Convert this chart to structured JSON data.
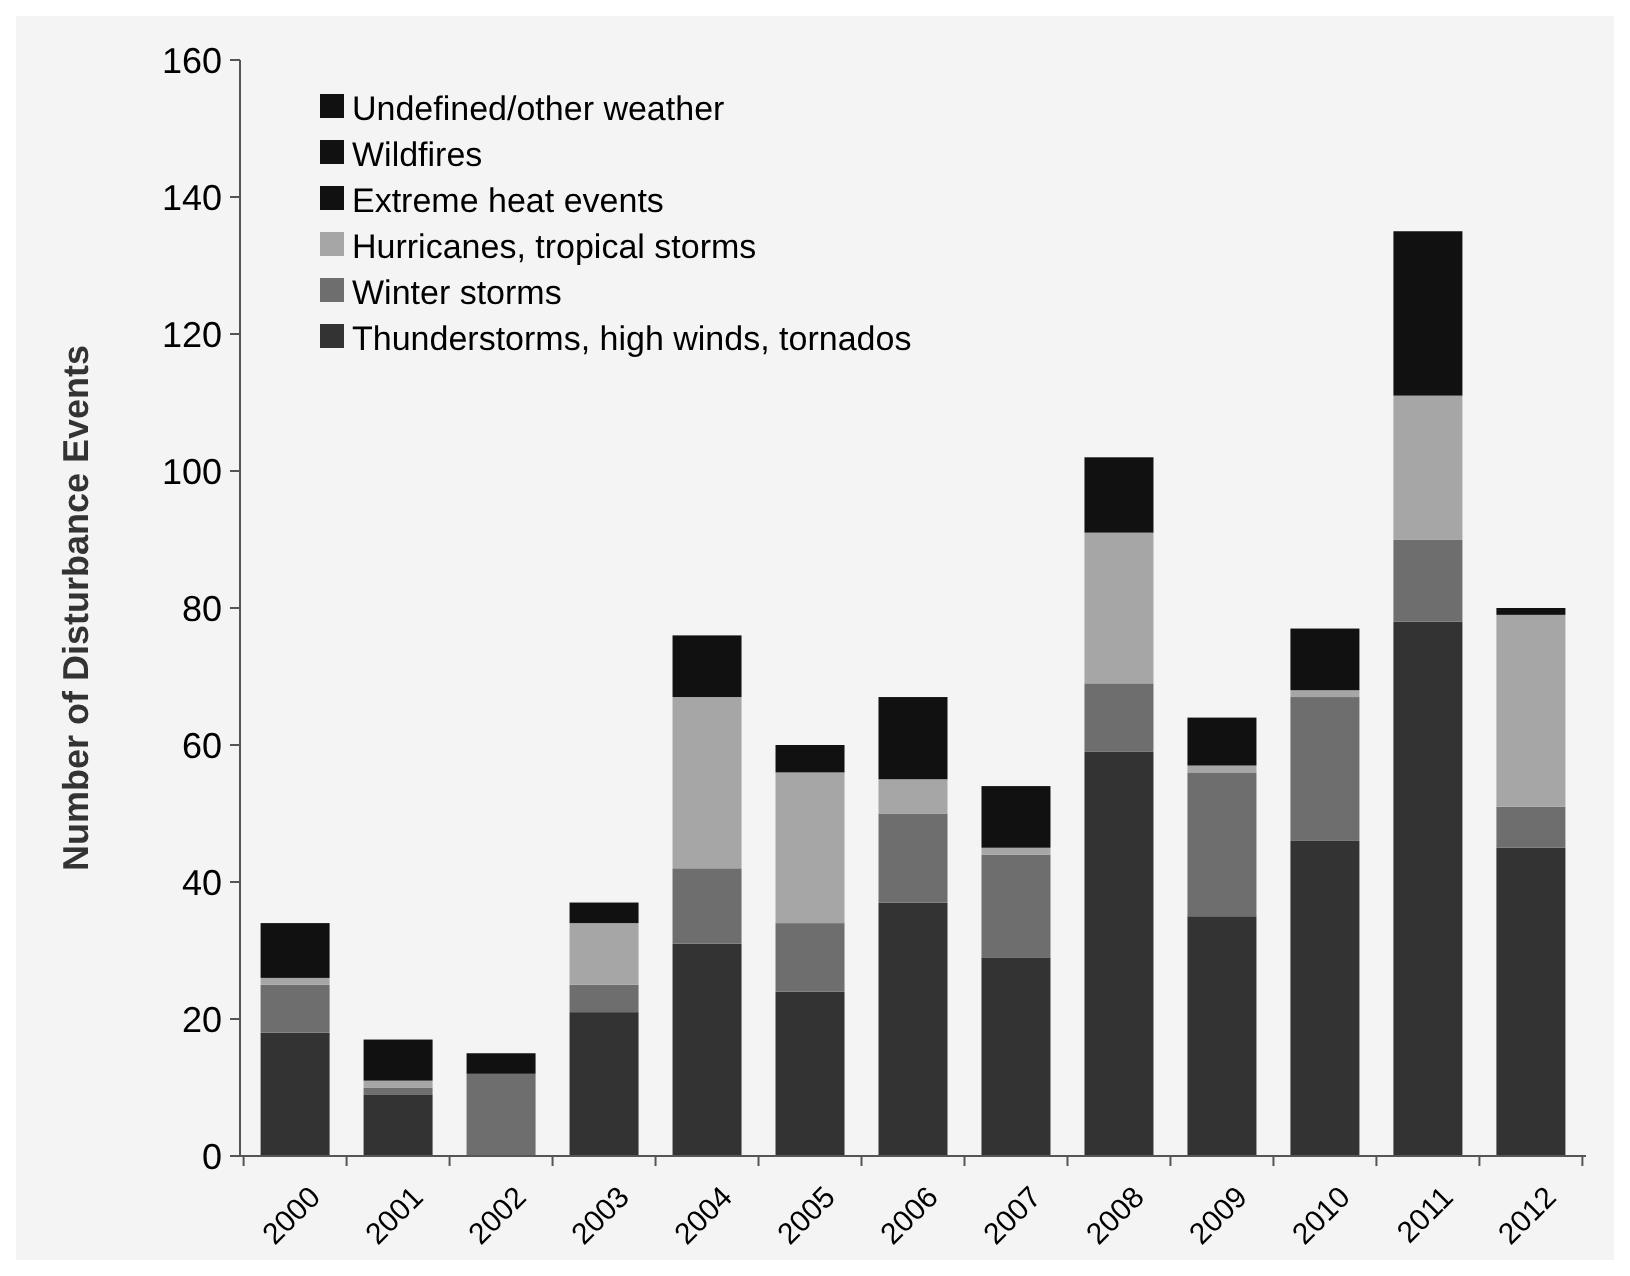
{
  "chart_data": {
    "type": "bar",
    "stacked": true,
    "ylabel": "Number of Disturbance Events",
    "categories": [
      "2000",
      "2001",
      "2002",
      "2003",
      "2004",
      "2005",
      "2006",
      "2007",
      "2008",
      "2009",
      "2010",
      "2011",
      "2012"
    ],
    "series": [
      {
        "name": "Thunderstorms, high winds, tornados",
        "color": "#333333",
        "values": [
          18,
          9,
          0,
          21,
          31,
          24,
          37,
          29,
          59,
          35,
          46,
          78,
          45
        ]
      },
      {
        "name": "Winter storms",
        "color": "#6e6e6e",
        "values": [
          7,
          1,
          12,
          4,
          11,
          10,
          13,
          15,
          10,
          21,
          21,
          12,
          6
        ]
      },
      {
        "name": "Hurricanes, tropical storms",
        "color": "#a6a6a6",
        "values": [
          1,
          1,
          0,
          9,
          25,
          22,
          5,
          1,
          22,
          1,
          1,
          21,
          28
        ]
      },
      {
        "name": "Extreme heat events",
        "color": "#111111",
        "values": [
          8,
          6,
          3,
          3,
          9,
          4,
          12,
          9,
          11,
          7,
          9,
          24,
          1
        ]
      },
      {
        "name": "Wildfires",
        "color": "#111111",
        "values": [
          0,
          0,
          0,
          0,
          0,
          0,
          0,
          0,
          0,
          0,
          0,
          0,
          0
        ]
      },
      {
        "name": "Undefined/other weather",
        "color": "#111111",
        "values": [
          0,
          0,
          0,
          0,
          0,
          0,
          0,
          0,
          0,
          0,
          0,
          0,
          0
        ]
      }
    ],
    "ylim": [
      0,
      160
    ],
    "yticks": [
      0,
      20,
      40,
      60,
      80,
      100,
      120,
      140,
      160
    ],
    "legend": "top left"
  }
}
